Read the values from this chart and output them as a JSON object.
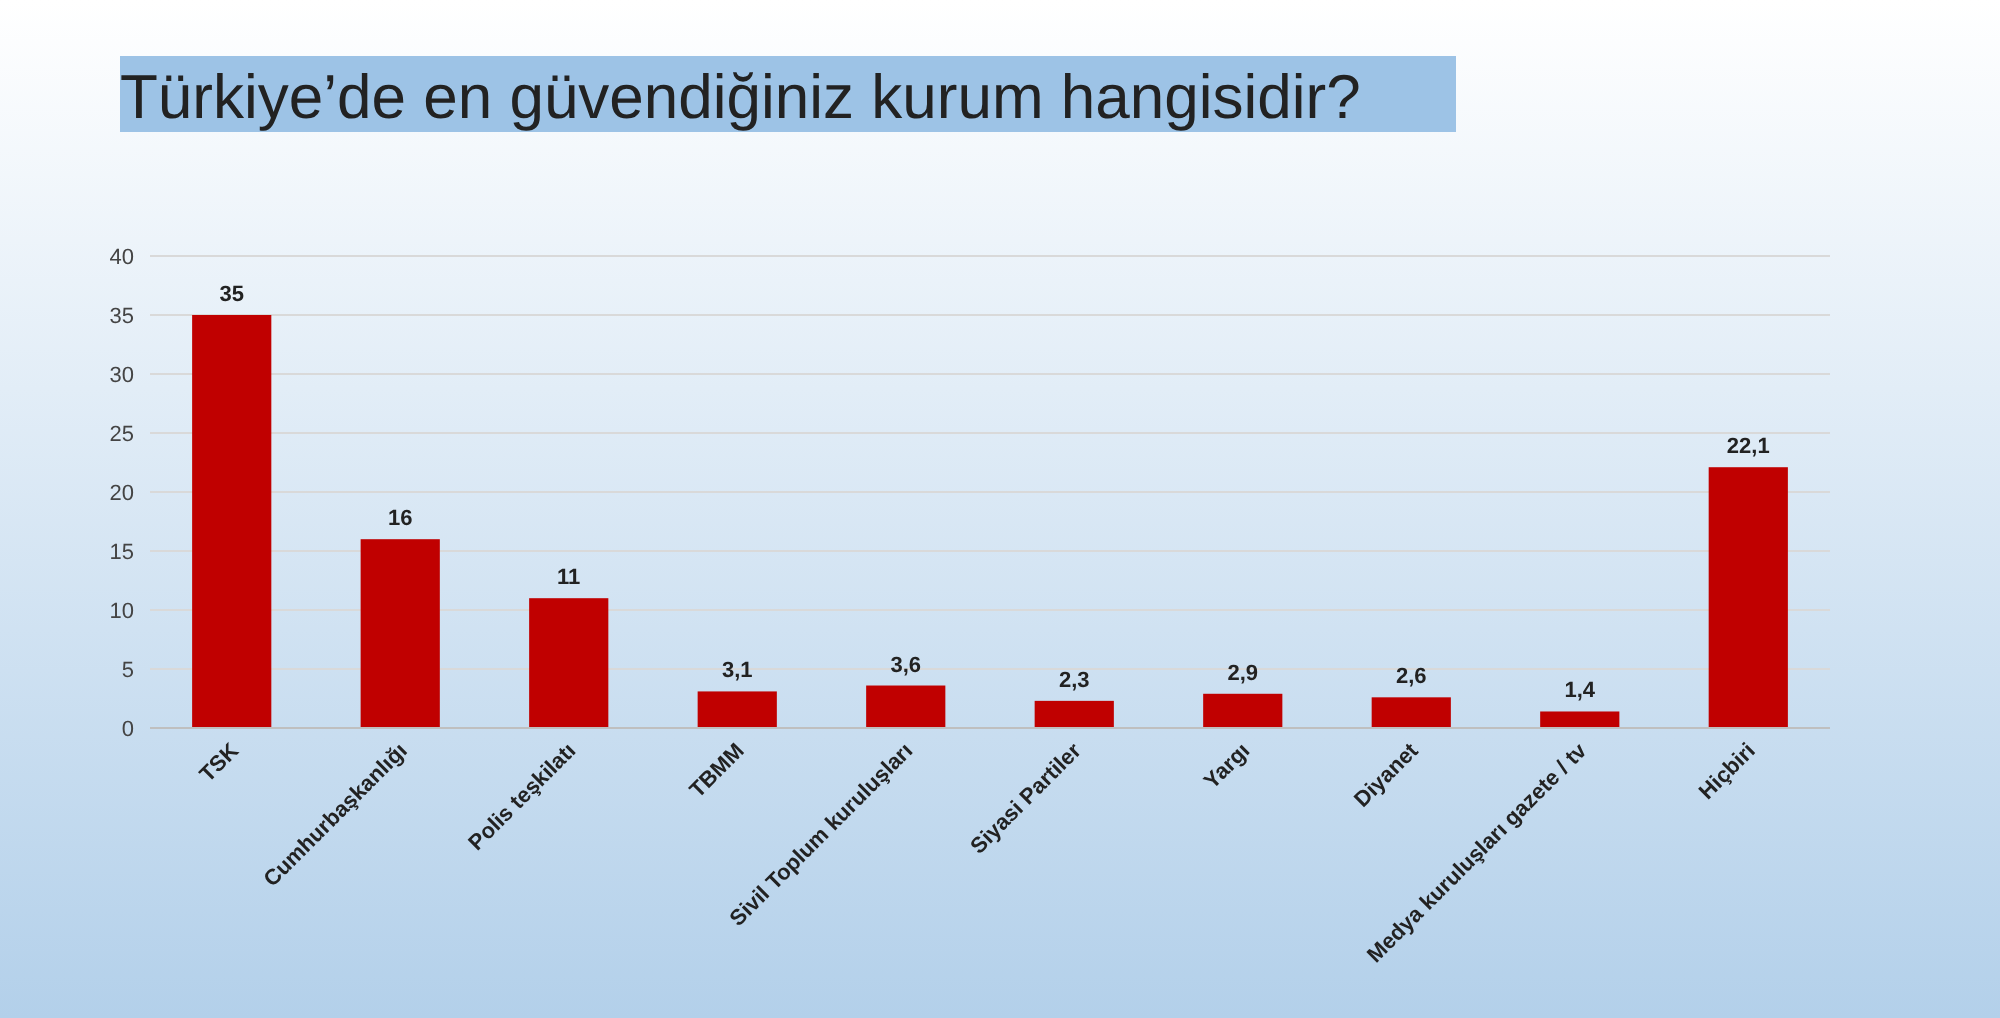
{
  "chart_data": {
    "type": "bar",
    "title": "Türkiye’de en güvendiğiniz kurum hangisidir?",
    "categories": [
      "TSK",
      "Cumhurbaşkanlığı",
      "Polis teşkilatı",
      "TBMM",
      "Sivil Toplum kuruluşları",
      "Siyasi Partiler",
      "Yargı",
      "Diyanet",
      "Medya kuruluşları gazete / tv",
      "Hiçbiri"
    ],
    "values": [
      35,
      16,
      11,
      3.1,
      3.6,
      2.3,
      2.9,
      2.6,
      1.4,
      22.1
    ],
    "value_labels": [
      "35",
      "16",
      "11",
      "3,1",
      "3,6",
      "2,3",
      "2,9",
      "2,6",
      "1,4",
      "22,1"
    ],
    "color": "#c00000",
    "ylim": [
      0,
      40
    ],
    "yticks": [
      0,
      5,
      10,
      15,
      20,
      25,
      30,
      35,
      40
    ],
    "grid": "y"
  }
}
